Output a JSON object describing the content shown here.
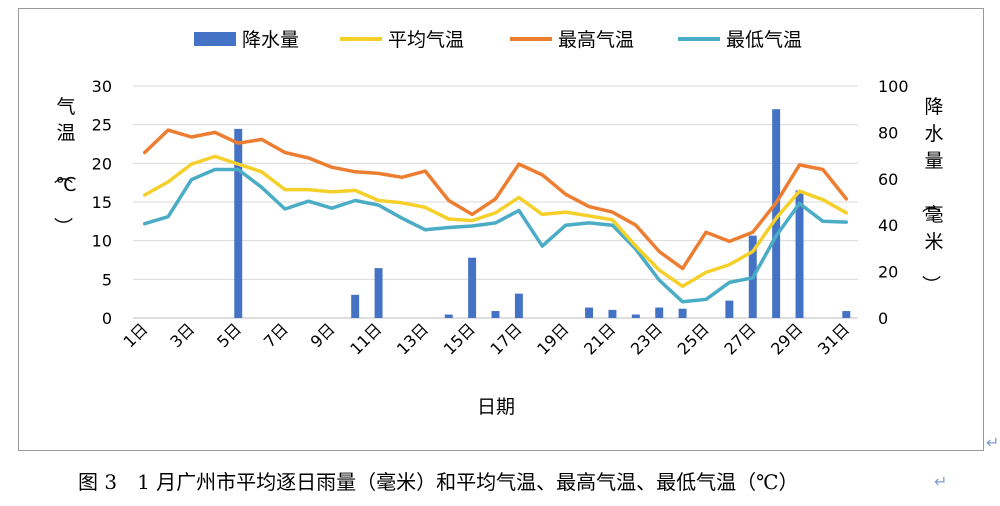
{
  "chart_data": {
    "type": "bar+line",
    "x_categories": [
      "1日",
      "2日",
      "3日",
      "4日",
      "5日",
      "6日",
      "7日",
      "8日",
      "9日",
      "10日",
      "11日",
      "12日",
      "13日",
      "14日",
      "15日",
      "16日",
      "17日",
      "18日",
      "19日",
      "20日",
      "21日",
      "22日",
      "23日",
      "24日",
      "25日",
      "26日",
      "27日",
      "28日",
      "29日",
      "30日",
      "31日"
    ],
    "x_tick_labels": [
      "1日",
      "3日",
      "5日",
      "7日",
      "9日",
      "11日",
      "13日",
      "15日",
      "17日",
      "19日",
      "21日",
      "23日",
      "25日",
      "27日",
      "29日",
      "31日"
    ],
    "xlabel": "日期",
    "ylabel_left": "气温（℃）",
    "ylabel_right": "降水量（毫米）",
    "ylim_left": [
      0,
      30
    ],
    "ylim_right": [
      0,
      100
    ],
    "yticks_left": [
      "0",
      "5",
      "10",
      "15",
      "20",
      "25",
      "30"
    ],
    "yticks_right": [
      "0",
      "20",
      "40",
      "60",
      "80",
      "100"
    ],
    "legend_position": "top",
    "series": [
      {
        "name": "降水量",
        "type": "bar",
        "axis": "right",
        "color": "#4472C4",
        "values": [
          0,
          0,
          0,
          0,
          81.5,
          0,
          0,
          0,
          0,
          10,
          21.5,
          0,
          0,
          1.5,
          26,
          3,
          10.5,
          0,
          0,
          4.5,
          3.5,
          1.5,
          4.5,
          4,
          0,
          7.5,
          35.5,
          90,
          55,
          0,
          3
        ]
      },
      {
        "name": "平均气温",
        "type": "line",
        "axis": "left",
        "color": "#F5D02A",
        "values": [
          15.9,
          17.6,
          19.9,
          20.9,
          19.9,
          18.9,
          16.6,
          16.6,
          16.3,
          16.5,
          15.2,
          14.9,
          14.3,
          12.8,
          12.6,
          13.6,
          15.6,
          13.4,
          13.7,
          13.2,
          12.7,
          9.3,
          6.2,
          4.1,
          5.9,
          6.9,
          8.6,
          12.9,
          16.4,
          15.3,
          13.6
        ]
      },
      {
        "name": "最高气温",
        "type": "line",
        "axis": "left",
        "color": "#ED7D31",
        "values": [
          21.4,
          24.3,
          23.4,
          24,
          22.6,
          23.1,
          21.4,
          20.7,
          19.5,
          18.9,
          18.7,
          18.2,
          19,
          15.2,
          13.4,
          15.4,
          19.9,
          18.5,
          16,
          14.4,
          13.7,
          12,
          8.6,
          6.4,
          11.1,
          9.9,
          11.1,
          14.9,
          19.8,
          19.2,
          15.4
        ]
      },
      {
        "name": "最低气温",
        "type": "line",
        "axis": "left",
        "color": "#4BACC6",
        "values": [
          12.2,
          13.1,
          17.9,
          19.2,
          19.2,
          16.9,
          14.1,
          15.1,
          14.2,
          15.2,
          14.6,
          12.9,
          11.4,
          11.7,
          11.9,
          12.3,
          13.9,
          9.3,
          12,
          12.3,
          12,
          8.9,
          4.9,
          2.1,
          2.4,
          4.6,
          5.2,
          10.6,
          14.8,
          12.5,
          12.4
        ]
      }
    ]
  },
  "caption": "图 3　1 月广州市平均逐日雨量（毫米）和平均气温、最高气温、最低气温（℃）",
  "return_mark": "↵"
}
